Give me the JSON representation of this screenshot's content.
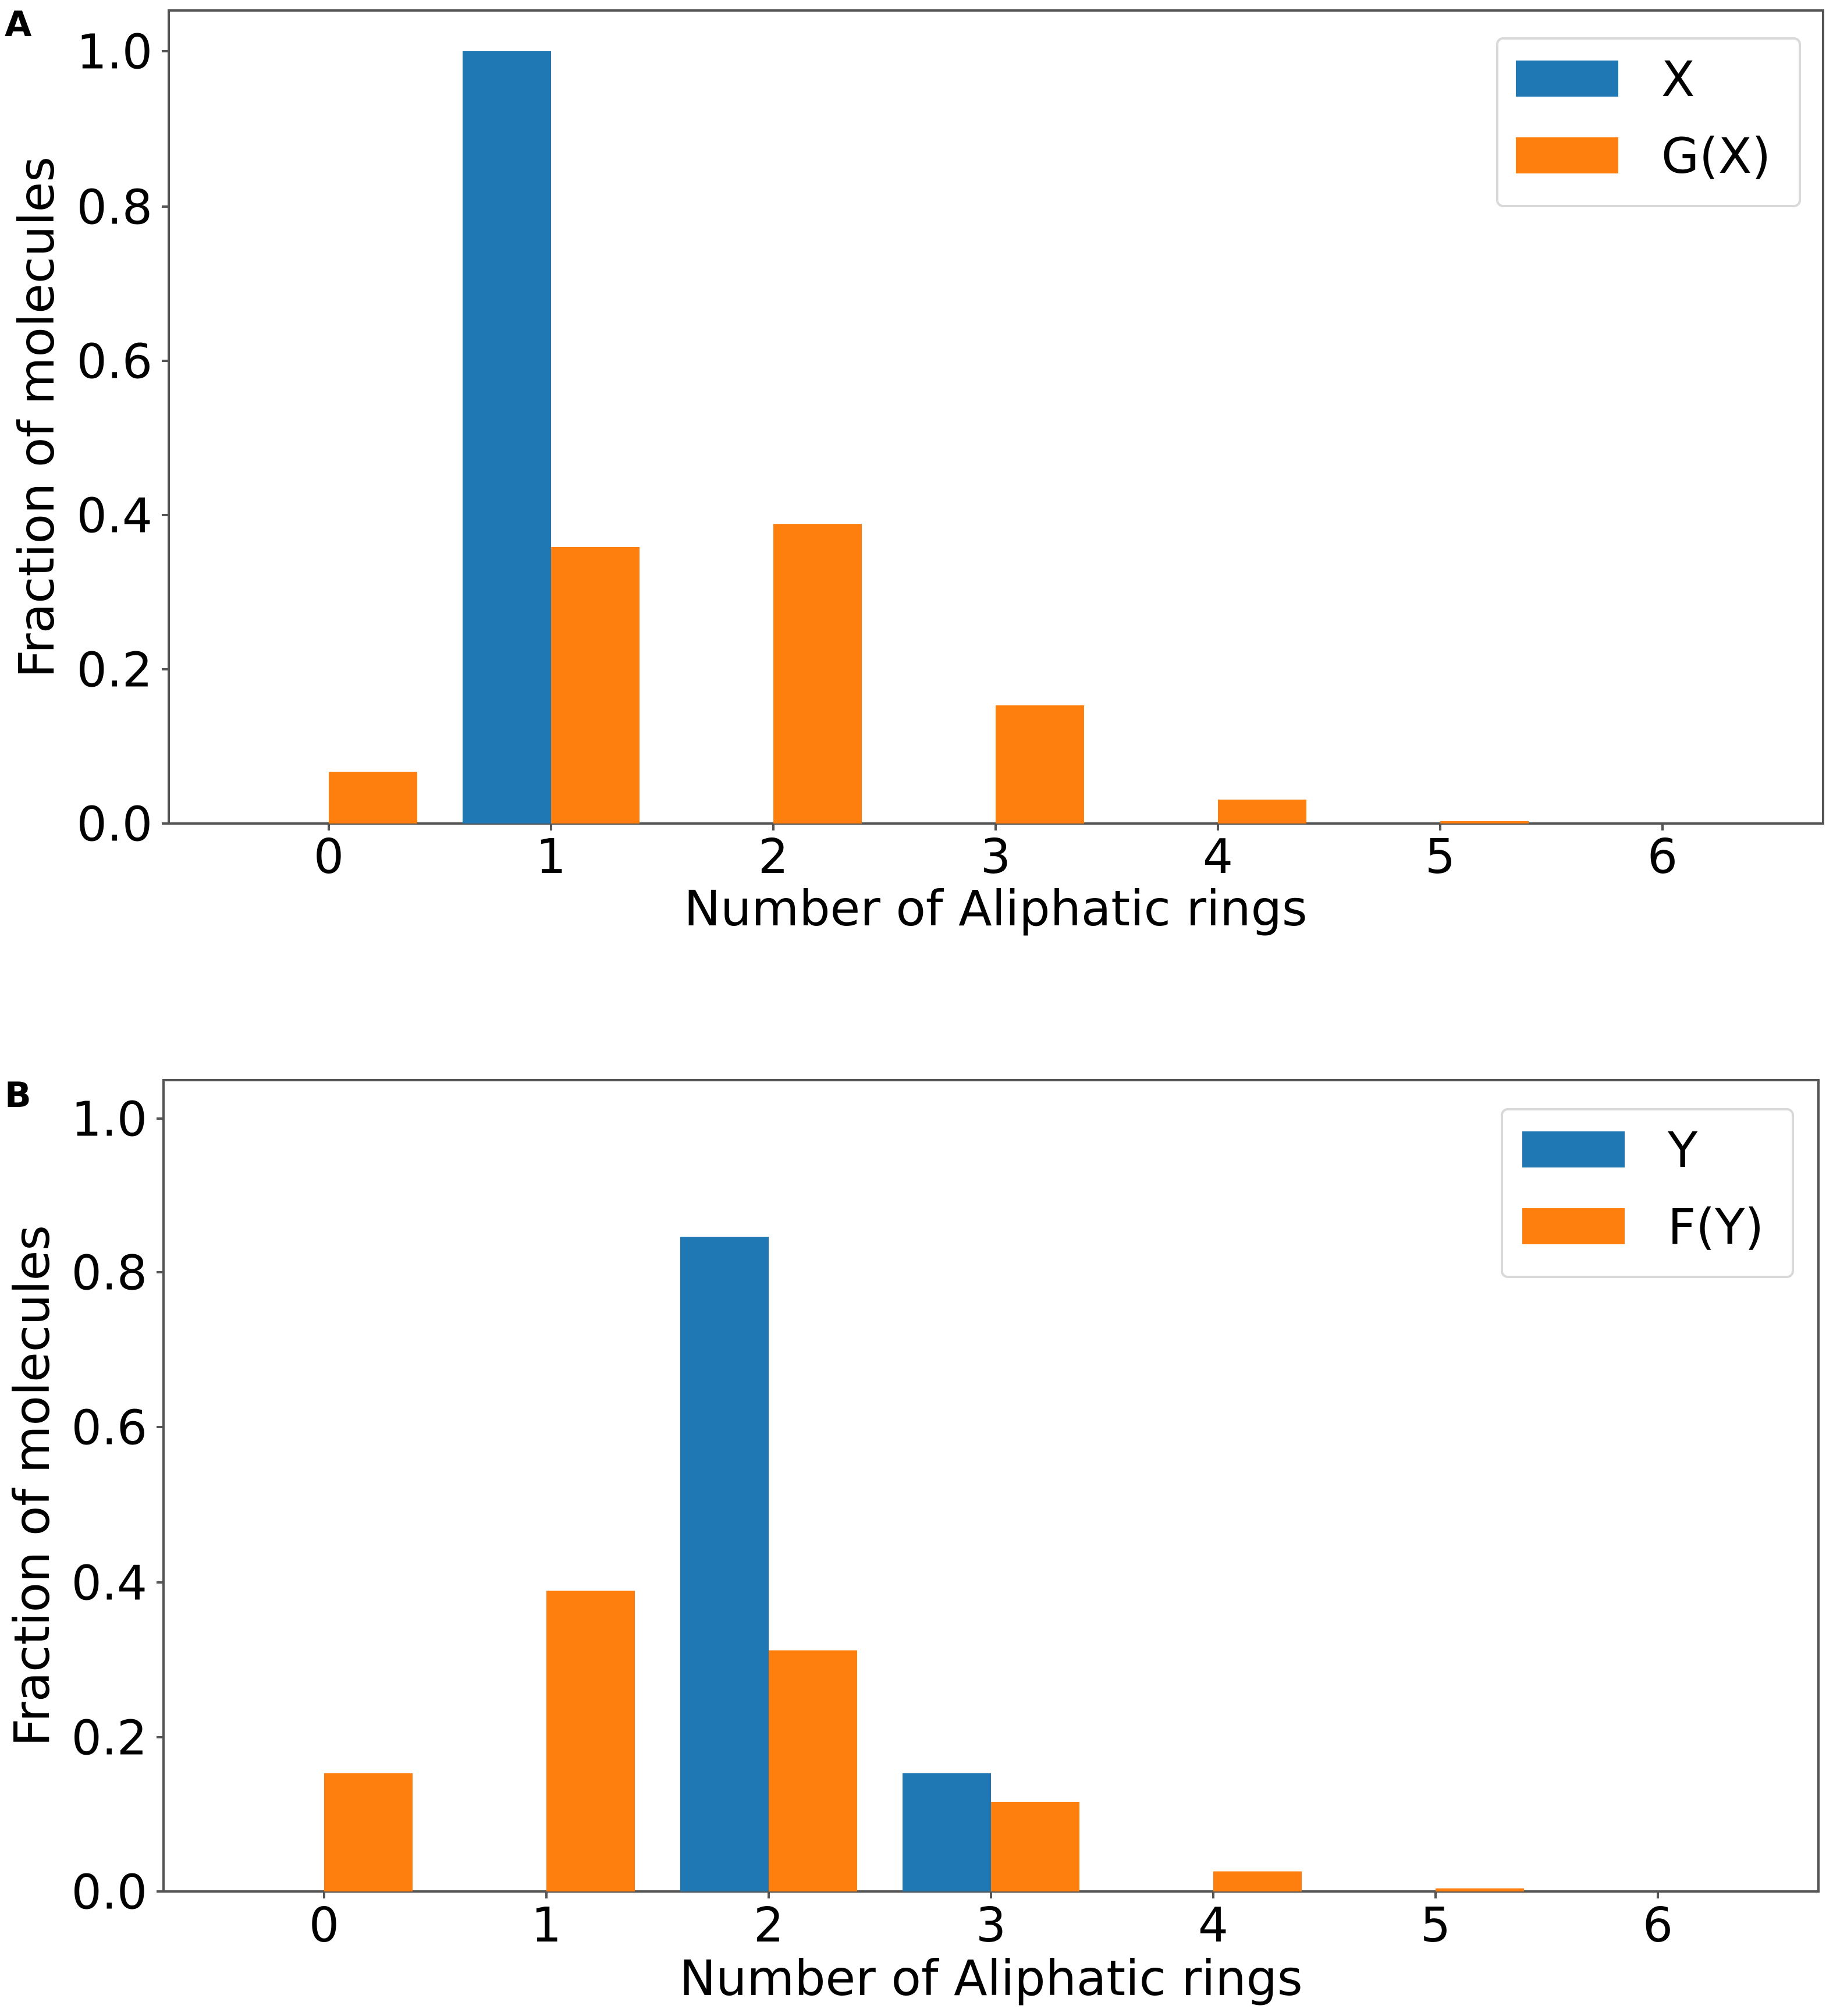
{
  "chart_data": [
    {
      "type": "bar",
      "panel_label": "A",
      "categories": [
        "0",
        "1",
        "2",
        "3",
        "4",
        "5",
        "6"
      ],
      "series": [
        {
          "name": "X",
          "color": "#1f77b4",
          "values": [
            0,
            1.0,
            0,
            0,
            0,
            0,
            0
          ]
        },
        {
          "name": "G(X)",
          "color": "#ff7f0e",
          "values": [
            0.067,
            0.358,
            0.388,
            0.153,
            0.031,
            0.003,
            0
          ]
        }
      ],
      "xlabel": "Number of Aliphatic rings",
      "ylabel": "Fraction of molecules",
      "yticks": [
        "0.0",
        "0.2",
        "0.4",
        "0.6",
        "0.8",
        "1.0"
      ],
      "ylim": [
        0,
        1.0
      ],
      "legend_position": "top-right",
      "grid": false
    },
    {
      "type": "bar",
      "panel_label": "B",
      "categories": [
        "0",
        "1",
        "2",
        "3",
        "4",
        "5",
        "6"
      ],
      "series": [
        {
          "name": "Y",
          "color": "#1f77b4",
          "values": [
            0,
            0,
            0.847,
            0.153,
            0,
            0,
            0
          ]
        },
        {
          "name": "F(Y)",
          "color": "#ff7f0e",
          "values": [
            0.153,
            0.389,
            0.312,
            0.116,
            0.026,
            0.004,
            0
          ]
        }
      ],
      "xlabel": "Number of Aliphatic rings",
      "ylabel": "Fraction of molecules",
      "yticks": [
        "0.0",
        "0.2",
        "0.4",
        "0.6",
        "0.8",
        "1.0"
      ],
      "ylim": [
        0,
        1.0
      ],
      "legend_position": "top-right",
      "grid": false
    }
  ]
}
